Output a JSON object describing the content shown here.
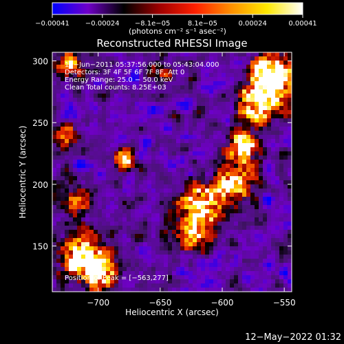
{
  "chart_data": {
    "type": "heatmap",
    "title": "Reconstructed RHESSI Image",
    "xlabel": "Heliocentric X (arcsec)",
    "ylabel": "Heliocentric Y (arcsec)",
    "xlim": [
      -737,
      -544
    ],
    "ylim": [
      113,
      307
    ],
    "x_ticks": [
      -700,
      -650,
      -600,
      -550
    ],
    "x_tick_labels": [
      "−700",
      "−650",
      "−600",
      "−550"
    ],
    "y_ticks": [
      150,
      200,
      250,
      300
    ],
    "y_tick_labels": [
      "150",
      "200",
      "250",
      "300"
    ],
    "colorbar": {
      "range": [
        -0.00041,
        0.00041
      ],
      "tick_labels": [
        "−0.00041",
        "−0.00024",
        "−8.1e−05",
        "8.1e−05",
        "0.00024",
        "0.00041"
      ],
      "unit_label": "(photons cm⁻² s⁻¹ asec⁻²)",
      "colormap": [
        "#0000ff",
        "#7000c8",
        "#000000",
        "#a00000",
        "#ff2000",
        "#ff9000",
        "#ffe800",
        "#ffffff"
      ]
    },
    "annotations": [
      "17−Jun−2011 05:37:56.000 to 05:43:04.000",
      "Detectors: 3F 4F 5F 6F 7F 8F, Att 0",
      "Energy Range: 25.0 − 50.0 keV",
      "Clean     Total counts: 8.25E+03"
    ],
    "peak_label": "Position of Peak = [−563,277]",
    "date_stamp": "12−May−2022 01:32"
  }
}
